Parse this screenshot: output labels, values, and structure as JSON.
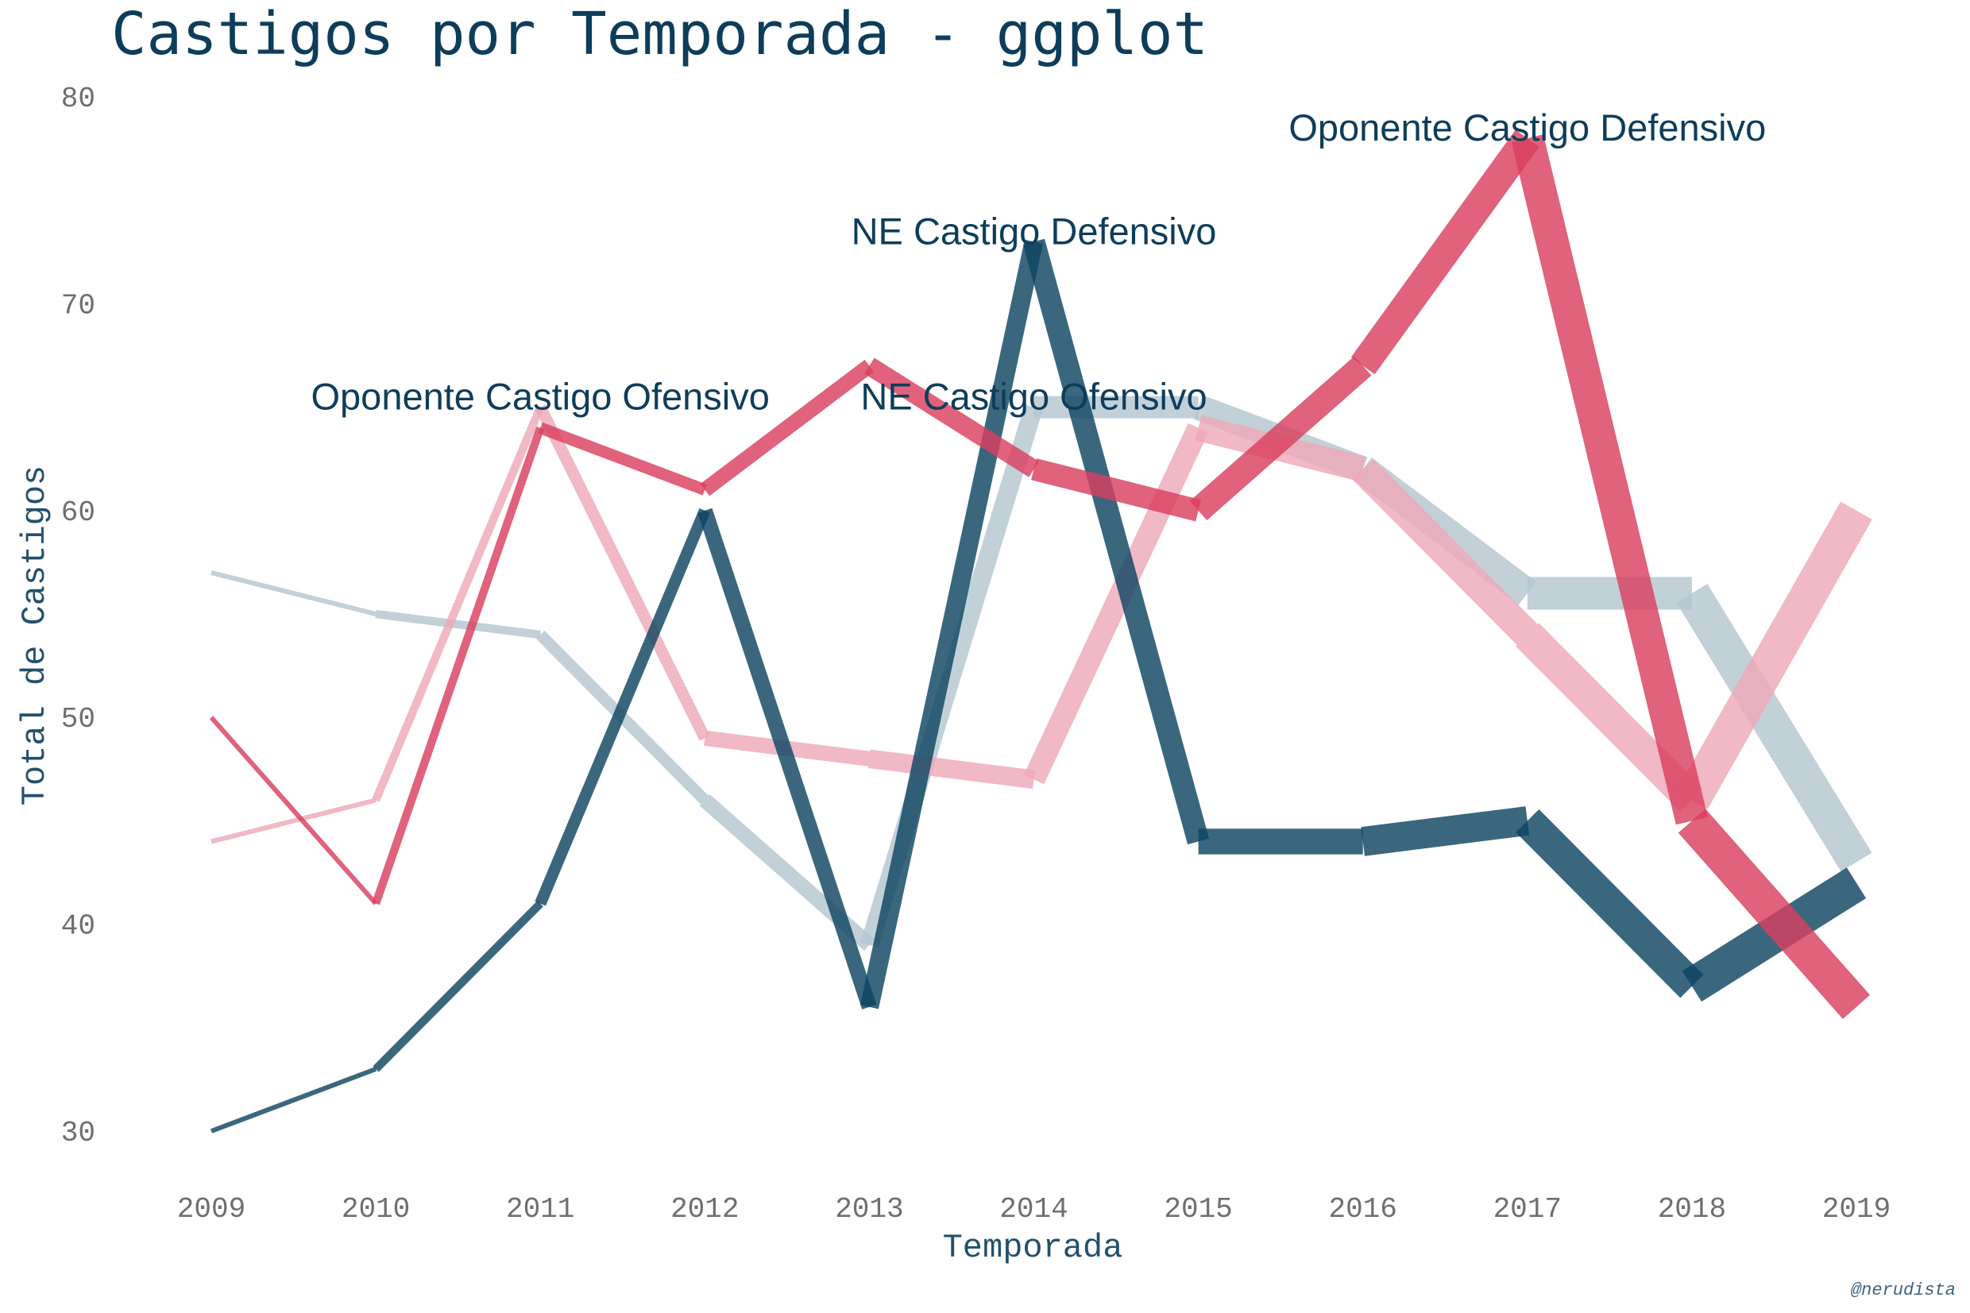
{
  "chart_data": {
    "type": "line",
    "title": "Castigos por Temporada - ggplot",
    "xlabel": "Temporada",
    "ylabel": "Total de Castigos",
    "caption": "@nerudista",
    "x": [
      2009,
      2010,
      2011,
      2012,
      2013,
      2014,
      2015,
      2016,
      2017,
      2018,
      2019
    ],
    "x_tick_labels": [
      "2009",
      "2010",
      "2011",
      "2012",
      "2013",
      "2014",
      "2015",
      "2016",
      "2017",
      "2018",
      "2019"
    ],
    "ylim": [
      30,
      80
    ],
    "y_ticks": [
      30,
      40,
      50,
      60,
      70,
      80
    ],
    "grid": false,
    "legend": "none",
    "series": [
      {
        "id": "ne_ofensivo",
        "color": "#b5c6cf",
        "values": [
          57,
          55,
          54,
          46,
          39,
          65,
          65,
          62,
          56,
          56,
          43
        ]
      },
      {
        "id": "op_ofensivo",
        "color": "#eea8b8",
        "values": [
          44,
          46,
          65,
          49,
          48,
          47,
          64,
          62,
          54,
          46,
          60
        ]
      },
      {
        "id": "ne_defensivo",
        "color": "#0f4562",
        "values": [
          30,
          33,
          41,
          60,
          36,
          73,
          44,
          44,
          45,
          37,
          42
        ]
      },
      {
        "id": "op_defensivo",
        "color": "#d9405f",
        "values": [
          50,
          41,
          64,
          61,
          67,
          62,
          60,
          67,
          78,
          45,
          36
        ]
      }
    ],
    "annotations": [
      {
        "text": "Oponente Castigo Ofensivo",
        "x": 2011,
        "y": 65.5
      },
      {
        "text": "NE Castigo Ofensivo",
        "x": 2014,
        "y": 65.5
      },
      {
        "text": "NE Castigo Defensivo",
        "x": 2014,
        "y": 73.5
      },
      {
        "text": "Oponente Castigo Defensivo",
        "x": 2017,
        "y": 78.5
      }
    ]
  }
}
